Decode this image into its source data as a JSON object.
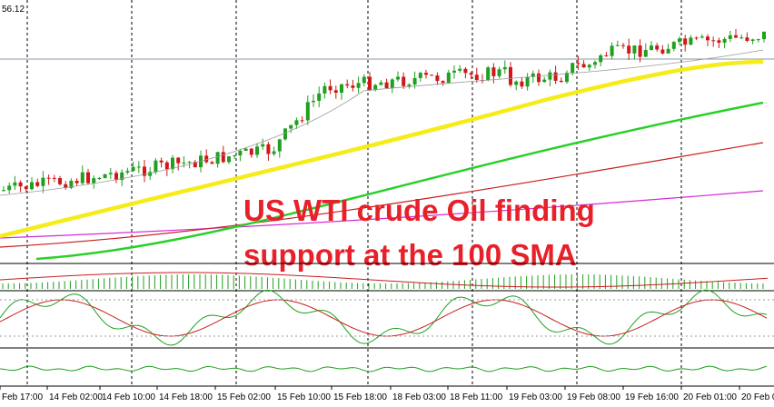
{
  "price_label": "56.12",
  "annotation": {
    "lines": [
      "US WTI crude Oil finding",
      "support at the 100 SMA"
    ]
  },
  "x_axis": {
    "labels": [
      "Feb 17:00",
      "14 Feb 02:00",
      "14 Feb 10:00",
      "14 Feb 18:00",
      "15 Feb 02:00",
      "15 Feb 10:00",
      "15 Feb 18:00",
      "18 Feb 03:00",
      "18 Feb 11:00",
      "19 Feb 03:00",
      "19 Feb 08:00",
      "19 Feb 16:00",
      "20 Feb 01:00",
      "20 Feb 0"
    ]
  }
}
